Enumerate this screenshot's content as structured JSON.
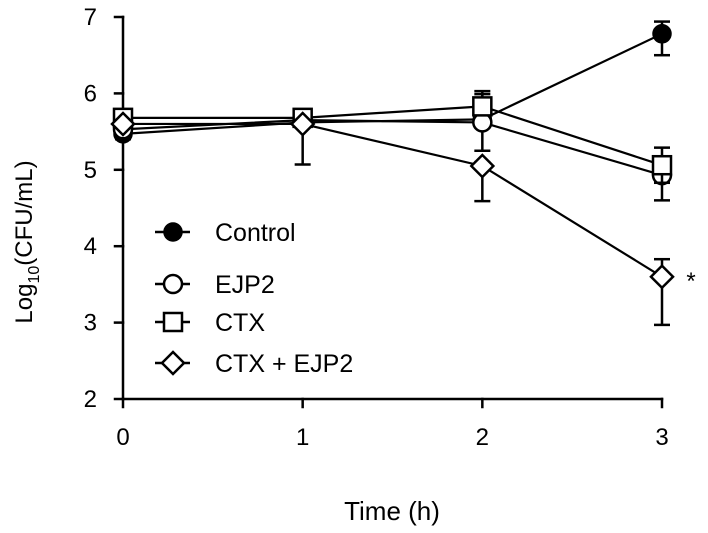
{
  "chart_data": {
    "type": "line",
    "title": "",
    "xlabel": "Time (h)",
    "ylabel_main": "Log",
    "ylabel_sub": "10",
    "ylabel_rest": "(CFU/mL)",
    "xlim": [
      0,
      3
    ],
    "ylim": [
      2,
      7
    ],
    "xticks": [
      "0",
      "1",
      "2",
      "3"
    ],
    "yticks": [
      "2",
      "3",
      "4",
      "5",
      "6",
      "7"
    ],
    "grid": false,
    "legend_position": "lower-left",
    "annotation": "*",
    "series": [
      {
        "name": "Control",
        "marker": "filled-circle",
        "x": [
          0,
          1,
          2,
          3
        ],
        "y": [
          5.47,
          5.62,
          5.66,
          6.78
        ],
        "err_low": [
          0.07,
          0.05,
          0.08,
          0.28
        ],
        "err_high": [
          0.07,
          0.05,
          0.08,
          0.16
        ]
      },
      {
        "name": "EJP2",
        "marker": "open-circle",
        "x": [
          0,
          1,
          2,
          3
        ],
        "y": [
          5.53,
          5.65,
          5.62,
          4.93
        ],
        "err_low": [
          0.06,
          0.05,
          0.37,
          0.33
        ],
        "err_high": [
          0.06,
          0.05,
          0.37,
          0.18
        ]
      },
      {
        "name": "CTX",
        "marker": "open-square",
        "x": [
          0,
          1,
          2,
          3
        ],
        "y": [
          5.68,
          5.68,
          5.83,
          5.06
        ],
        "err_low": [
          0.05,
          0.05,
          0.1,
          0.23
        ],
        "err_high": [
          0.05,
          0.05,
          0.2,
          0.23
        ]
      },
      {
        "name": "CTX + EJP2",
        "marker": "open-diamond",
        "x": [
          0,
          1,
          2,
          3
        ],
        "y": [
          5.6,
          5.6,
          5.05,
          3.6
        ],
        "err_low": [
          0.05,
          0.53,
          0.46,
          0.63
        ],
        "err_high": [
          0.05,
          0.05,
          0.05,
          0.23
        ]
      }
    ]
  }
}
